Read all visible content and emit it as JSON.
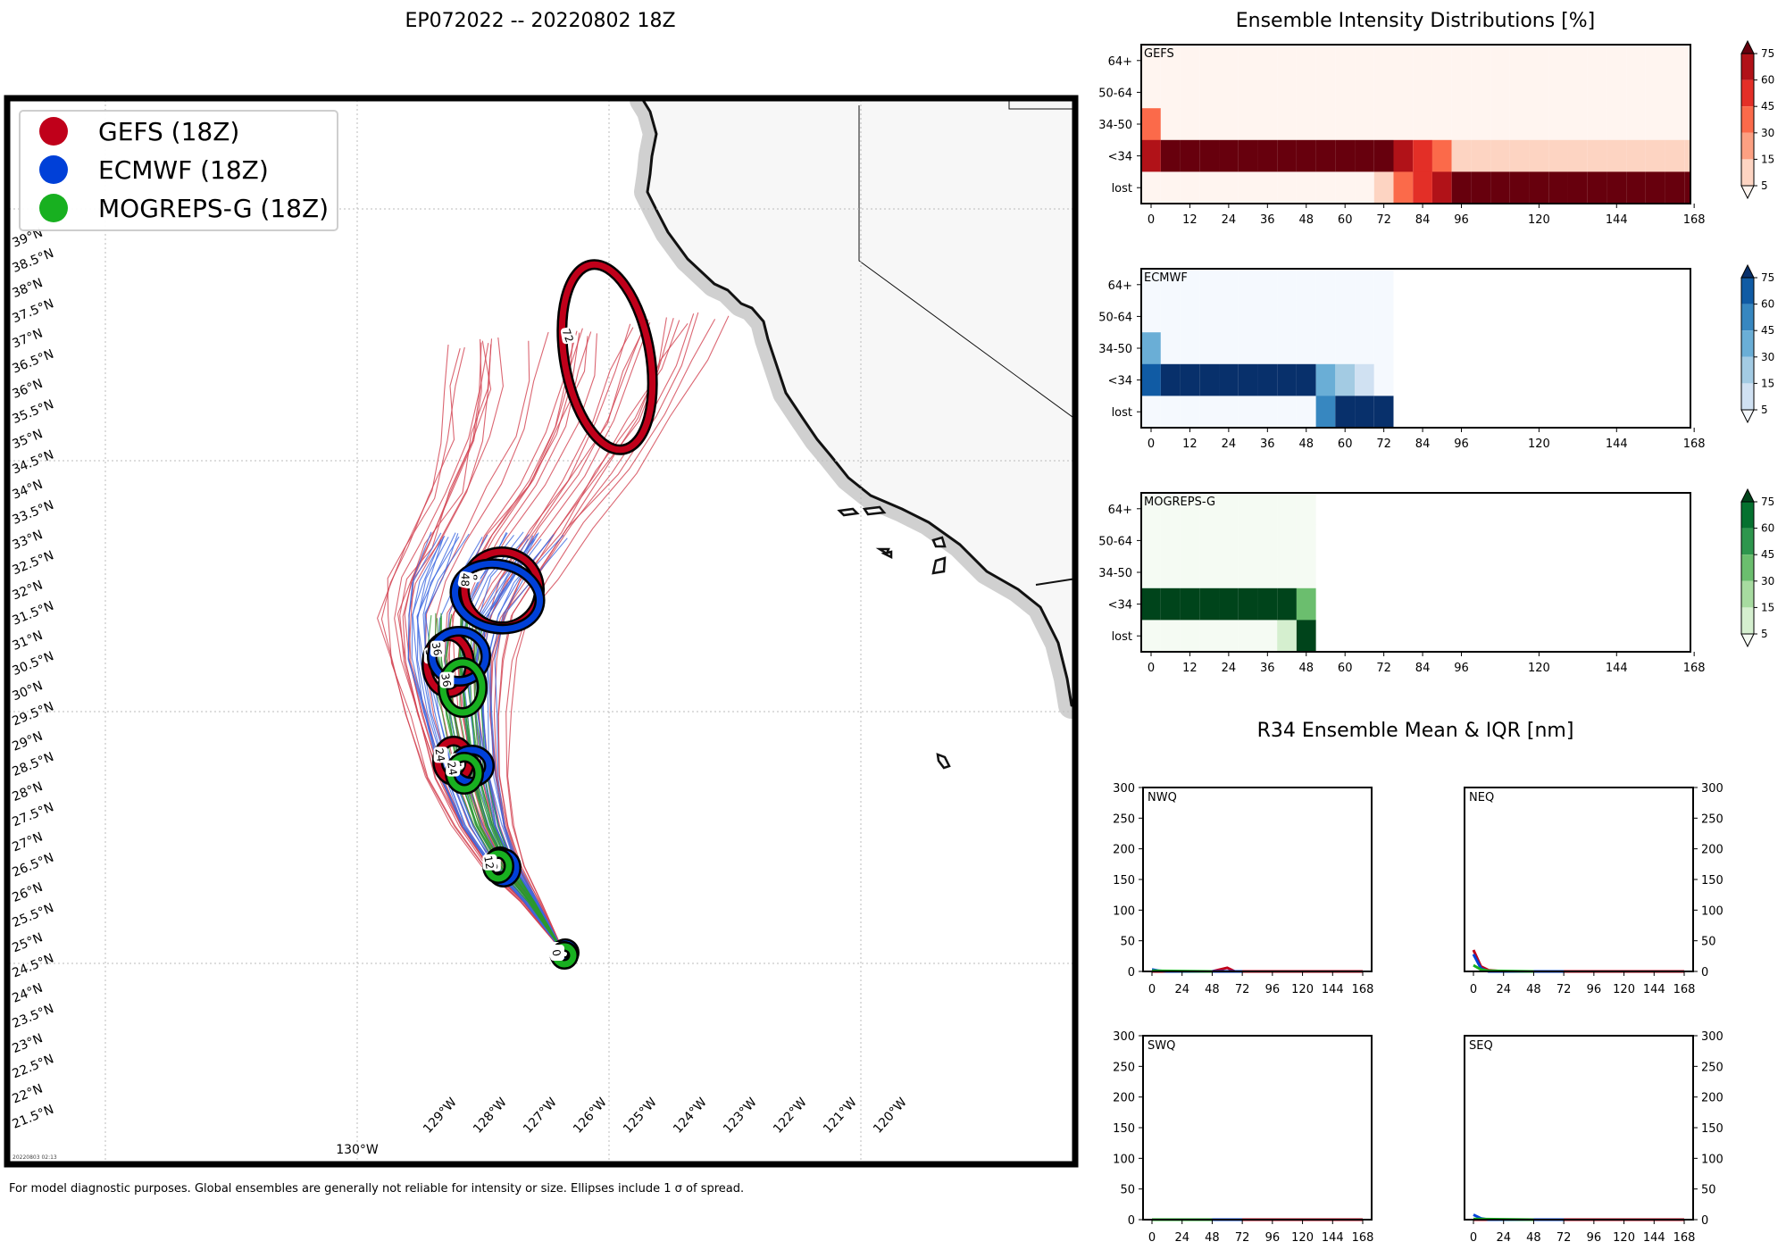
{
  "main_title": "EP072022 -- 20220802 18Z",
  "footnote": "For model diagnostic purposes. Global ensembles are generally not reliable for intensity or size. Ellipses include 1 σ of spread.",
  "stamp": "20220803 02:13",
  "colors": {
    "gefs": "#c0001a",
    "ecmwf": "#0040d8",
    "mogreps": "#18b020",
    "land": "#f7f7f7"
  },
  "legend": [
    {
      "label": "GEFS (18Z)",
      "icon": "red-circle-icon",
      "color": "#c0001a"
    },
    {
      "label": "ECMWF (18Z)",
      "icon": "blue-circle-icon",
      "color": "#0040d8"
    },
    {
      "label": "MOGREPS-G (18Z)",
      "icon": "green-circle-icon",
      "color": "#18b020"
    }
  ],
  "map": {
    "lat_labels": [
      "39°N",
      "38.5°N",
      "38°N",
      "37.5°N",
      "37°N",
      "36.5°N",
      "36°N",
      "35.5°N",
      "35°N",
      "34.5°N",
      "34°N",
      "33.5°N",
      "33°N",
      "32.5°N",
      "32°N",
      "31.5°N",
      "31°N",
      "30.5°N",
      "30°N",
      "29.5°N",
      "29°N",
      "28.5°N",
      "28°N",
      "27.5°N",
      "27°N",
      "26.5°N",
      "26°N",
      "25.5°N",
      "25°N",
      "24.5°N",
      "24°N",
      "23.5°N",
      "23°N",
      "22.5°N",
      "22°N",
      "21.5°N"
    ],
    "lon_labels": [
      "130°W",
      "129°W",
      "128°W",
      "127°W",
      "126°W",
      "125°W",
      "124°W",
      "123°W",
      "122°W",
      "121°W",
      "120°W"
    ],
    "markers": [
      {
        "model": "gefs",
        "hour": "0"
      },
      {
        "model": "gefs",
        "hour": "12"
      },
      {
        "model": "gefs",
        "hour": "24"
      },
      {
        "model": "gefs",
        "hour": "36"
      },
      {
        "model": "gefs",
        "hour": "48"
      },
      {
        "model": "gefs",
        "hour": "72"
      },
      {
        "model": "ecmwf",
        "hour": "0"
      },
      {
        "model": "ecmwf",
        "hour": "12"
      },
      {
        "model": "ecmwf",
        "hour": "24"
      },
      {
        "model": "ecmwf",
        "hour": "36"
      },
      {
        "model": "ecmwf",
        "hour": "48"
      },
      {
        "model": "mogreps",
        "hour": "0"
      },
      {
        "model": "mogreps",
        "hour": "12"
      },
      {
        "model": "mogreps",
        "hour": "24"
      },
      {
        "model": "mogreps",
        "hour": "36"
      }
    ]
  },
  "chart_data": [
    {
      "type": "heatmap",
      "title": "Ensemble Intensity Distributions [%]",
      "panel": "GEFS",
      "rows": [
        "64+",
        "50-64",
        "34-50",
        "<34",
        "lost"
      ],
      "x_ticks": [
        "0",
        "12",
        "24",
        "36",
        "48",
        "60",
        "72",
        "84",
        "96",
        "120",
        "144",
        "168"
      ],
      "hours": [
        0,
        6,
        12,
        18,
        24,
        30,
        36,
        42,
        48,
        54,
        60,
        66,
        72,
        78,
        84,
        90,
        96,
        102,
        108,
        114,
        120,
        126,
        132,
        138,
        144,
        150,
        156,
        162,
        168
      ],
      "colorbar": [
        "5",
        "15",
        "30",
        "45",
        "60",
        "75"
      ],
      "values": [
        [
          0,
          0,
          0,
          0,
          0,
          0,
          0,
          0,
          0,
          0,
          0,
          0,
          0,
          0,
          0,
          0,
          0,
          0,
          0,
          0,
          0,
          0,
          0,
          0,
          0,
          0,
          0,
          0,
          0
        ],
        [
          0,
          0,
          0,
          0,
          0,
          0,
          0,
          0,
          0,
          0,
          0,
          0,
          0,
          0,
          0,
          0,
          0,
          0,
          0,
          0,
          0,
          0,
          0,
          0,
          0,
          0,
          0,
          0,
          0
        ],
        [
          40,
          0,
          0,
          0,
          0,
          0,
          0,
          0,
          0,
          0,
          0,
          0,
          0,
          0,
          0,
          0,
          0,
          0,
          0,
          0,
          0,
          0,
          0,
          0,
          0,
          0,
          0,
          0,
          0
        ],
        [
          60,
          100,
          100,
          100,
          100,
          100,
          100,
          100,
          100,
          100,
          100,
          100,
          100,
          70,
          55,
          40,
          10,
          10,
          10,
          10,
          10,
          10,
          10,
          10,
          10,
          10,
          10,
          10,
          10
        ],
        [
          2,
          2,
          2,
          2,
          2,
          2,
          2,
          2,
          2,
          2,
          2,
          2,
          10,
          30,
          45,
          60,
          90,
          90,
          90,
          90,
          90,
          90,
          90,
          90,
          90,
          90,
          90,
          90,
          90
        ]
      ]
    },
    {
      "type": "heatmap",
      "panel": "ECMWF",
      "rows": [
        "64+",
        "50-64",
        "34-50",
        "<34",
        "lost"
      ],
      "x_ticks": [
        "0",
        "12",
        "24",
        "36",
        "48",
        "60",
        "72",
        "84",
        "96",
        "120",
        "144",
        "168"
      ],
      "hours": [
        0,
        6,
        12,
        18,
        24,
        30,
        36,
        42,
        48,
        54,
        60,
        66,
        72
      ],
      "colorbar": [
        "5",
        "15",
        "30",
        "45",
        "60",
        "75"
      ],
      "values": [
        [
          1,
          1,
          1,
          1,
          1,
          1,
          1,
          1,
          1,
          1,
          1,
          1,
          1
        ],
        [
          1,
          1,
          1,
          1,
          1,
          1,
          1,
          1,
          1,
          1,
          1,
          1,
          1
        ],
        [
          35,
          1,
          1,
          1,
          1,
          1,
          1,
          1,
          1,
          1,
          1,
          1,
          1
        ],
        [
          60,
          100,
          100,
          100,
          100,
          100,
          100,
          100,
          100,
          35,
          20,
          10,
          1
        ],
        [
          1,
          1,
          1,
          1,
          1,
          1,
          1,
          1,
          1,
          55,
          80,
          90,
          95
        ]
      ]
    },
    {
      "type": "heatmap",
      "panel": "MOGREPS-G",
      "rows": [
        "64+",
        "50-64",
        "34-50",
        "<34",
        "lost"
      ],
      "x_ticks": [
        "0",
        "12",
        "24",
        "36",
        "48",
        "60",
        "72",
        "84",
        "96",
        "120",
        "144",
        "168"
      ],
      "hours": [
        0,
        6,
        12,
        18,
        24,
        30,
        36,
        42,
        48
      ],
      "colorbar": [
        "5",
        "15",
        "30",
        "45",
        "60",
        "75"
      ],
      "values": [
        [
          1,
          1,
          1,
          1,
          1,
          1,
          1,
          1,
          1
        ],
        [
          1,
          1,
          1,
          1,
          1,
          1,
          1,
          1,
          1
        ],
        [
          1,
          1,
          1,
          1,
          1,
          1,
          1,
          1,
          1
        ],
        [
          100,
          100,
          100,
          100,
          100,
          100,
          100,
          100,
          35
        ],
        [
          3,
          3,
          3,
          3,
          3,
          3,
          3,
          10,
          90
        ]
      ]
    },
    {
      "type": "line",
      "title": "R34 Ensemble Mean & IQR [nm]",
      "panels": [
        {
          "label": "NWQ",
          "side": "left",
          "series": [
            {
              "name": "GEFS",
              "color": "#c0001a",
              "points": [
                [
                  0,
                  0
                ],
                [
                  48,
                  0
                ],
                [
                  60,
                  6
                ],
                [
                  66,
                  0
                ],
                [
                  168,
                  0
                ]
              ]
            },
            {
              "name": "ECMWF",
              "color": "#0040d8",
              "points": [
                [
                  0,
                  3
                ],
                [
                  6,
                  1
                ],
                [
                  12,
                  0
                ],
                [
                  72,
                  0
                ]
              ]
            },
            {
              "name": "MOGREPS-G",
              "color": "#18b020",
              "points": [
                [
                  0,
                  1
                ],
                [
                  48,
                  0
                ]
              ]
            }
          ]
        },
        {
          "label": "NEQ",
          "side": "right",
          "series": [
            {
              "name": "GEFS",
              "color": "#c0001a",
              "points": [
                [
                  0,
                  35
                ],
                [
                  6,
                  8
                ],
                [
                  12,
                  2
                ],
                [
                  24,
                  0
                ],
                [
                  168,
                  0
                ]
              ]
            },
            {
              "name": "ECMWF",
              "color": "#0040d8",
              "points": [
                [
                  0,
                  28
                ],
                [
                  6,
                  5
                ],
                [
                  12,
                  0
                ],
                [
                  72,
                  0
                ]
              ]
            },
            {
              "name": "MOGREPS-G",
              "color": "#18b020",
              "points": [
                [
                  0,
                  10
                ],
                [
                  6,
                  3
                ],
                [
                  12,
                  1
                ],
                [
                  48,
                  0
                ]
              ]
            }
          ]
        },
        {
          "label": "SWQ",
          "side": "left",
          "series": [
            {
              "name": "GEFS",
              "color": "#c0001a",
              "points": [
                [
                  0,
                  0
                ],
                [
                  168,
                  0
                ]
              ]
            },
            {
              "name": "ECMWF",
              "color": "#0040d8",
              "points": [
                [
                  0,
                  0
                ],
                [
                  72,
                  0
                ]
              ]
            },
            {
              "name": "MOGREPS-G",
              "color": "#18b020",
              "points": [
                [
                  0,
                  0
                ],
                [
                  48,
                  0
                ]
              ]
            }
          ]
        },
        {
          "label": "SEQ",
          "side": "right",
          "series": [
            {
              "name": "GEFS",
              "color": "#c0001a",
              "points": [
                [
                  0,
                  0
                ],
                [
                  168,
                  0
                ]
              ]
            },
            {
              "name": "ECMWF",
              "color": "#0040d8",
              "points": [
                [
                  0,
                  8
                ],
                [
                  6,
                  2
                ],
                [
                  12,
                  0
                ],
                [
                  72,
                  0
                ]
              ]
            },
            {
              "name": "MOGREPS-G",
              "color": "#18b020",
              "points": [
                [
                  0,
                  1
                ],
                [
                  48,
                  0
                ]
              ]
            }
          ]
        }
      ],
      "y_ticks": [
        "0",
        "50",
        "100",
        "150",
        "200",
        "250",
        "300"
      ],
      "x_ticks": [
        "0",
        "24",
        "48",
        "72",
        "96",
        "120",
        "144",
        "168"
      ],
      "ylim": [
        0,
        300
      ],
      "xlim": [
        0,
        168
      ]
    }
  ]
}
